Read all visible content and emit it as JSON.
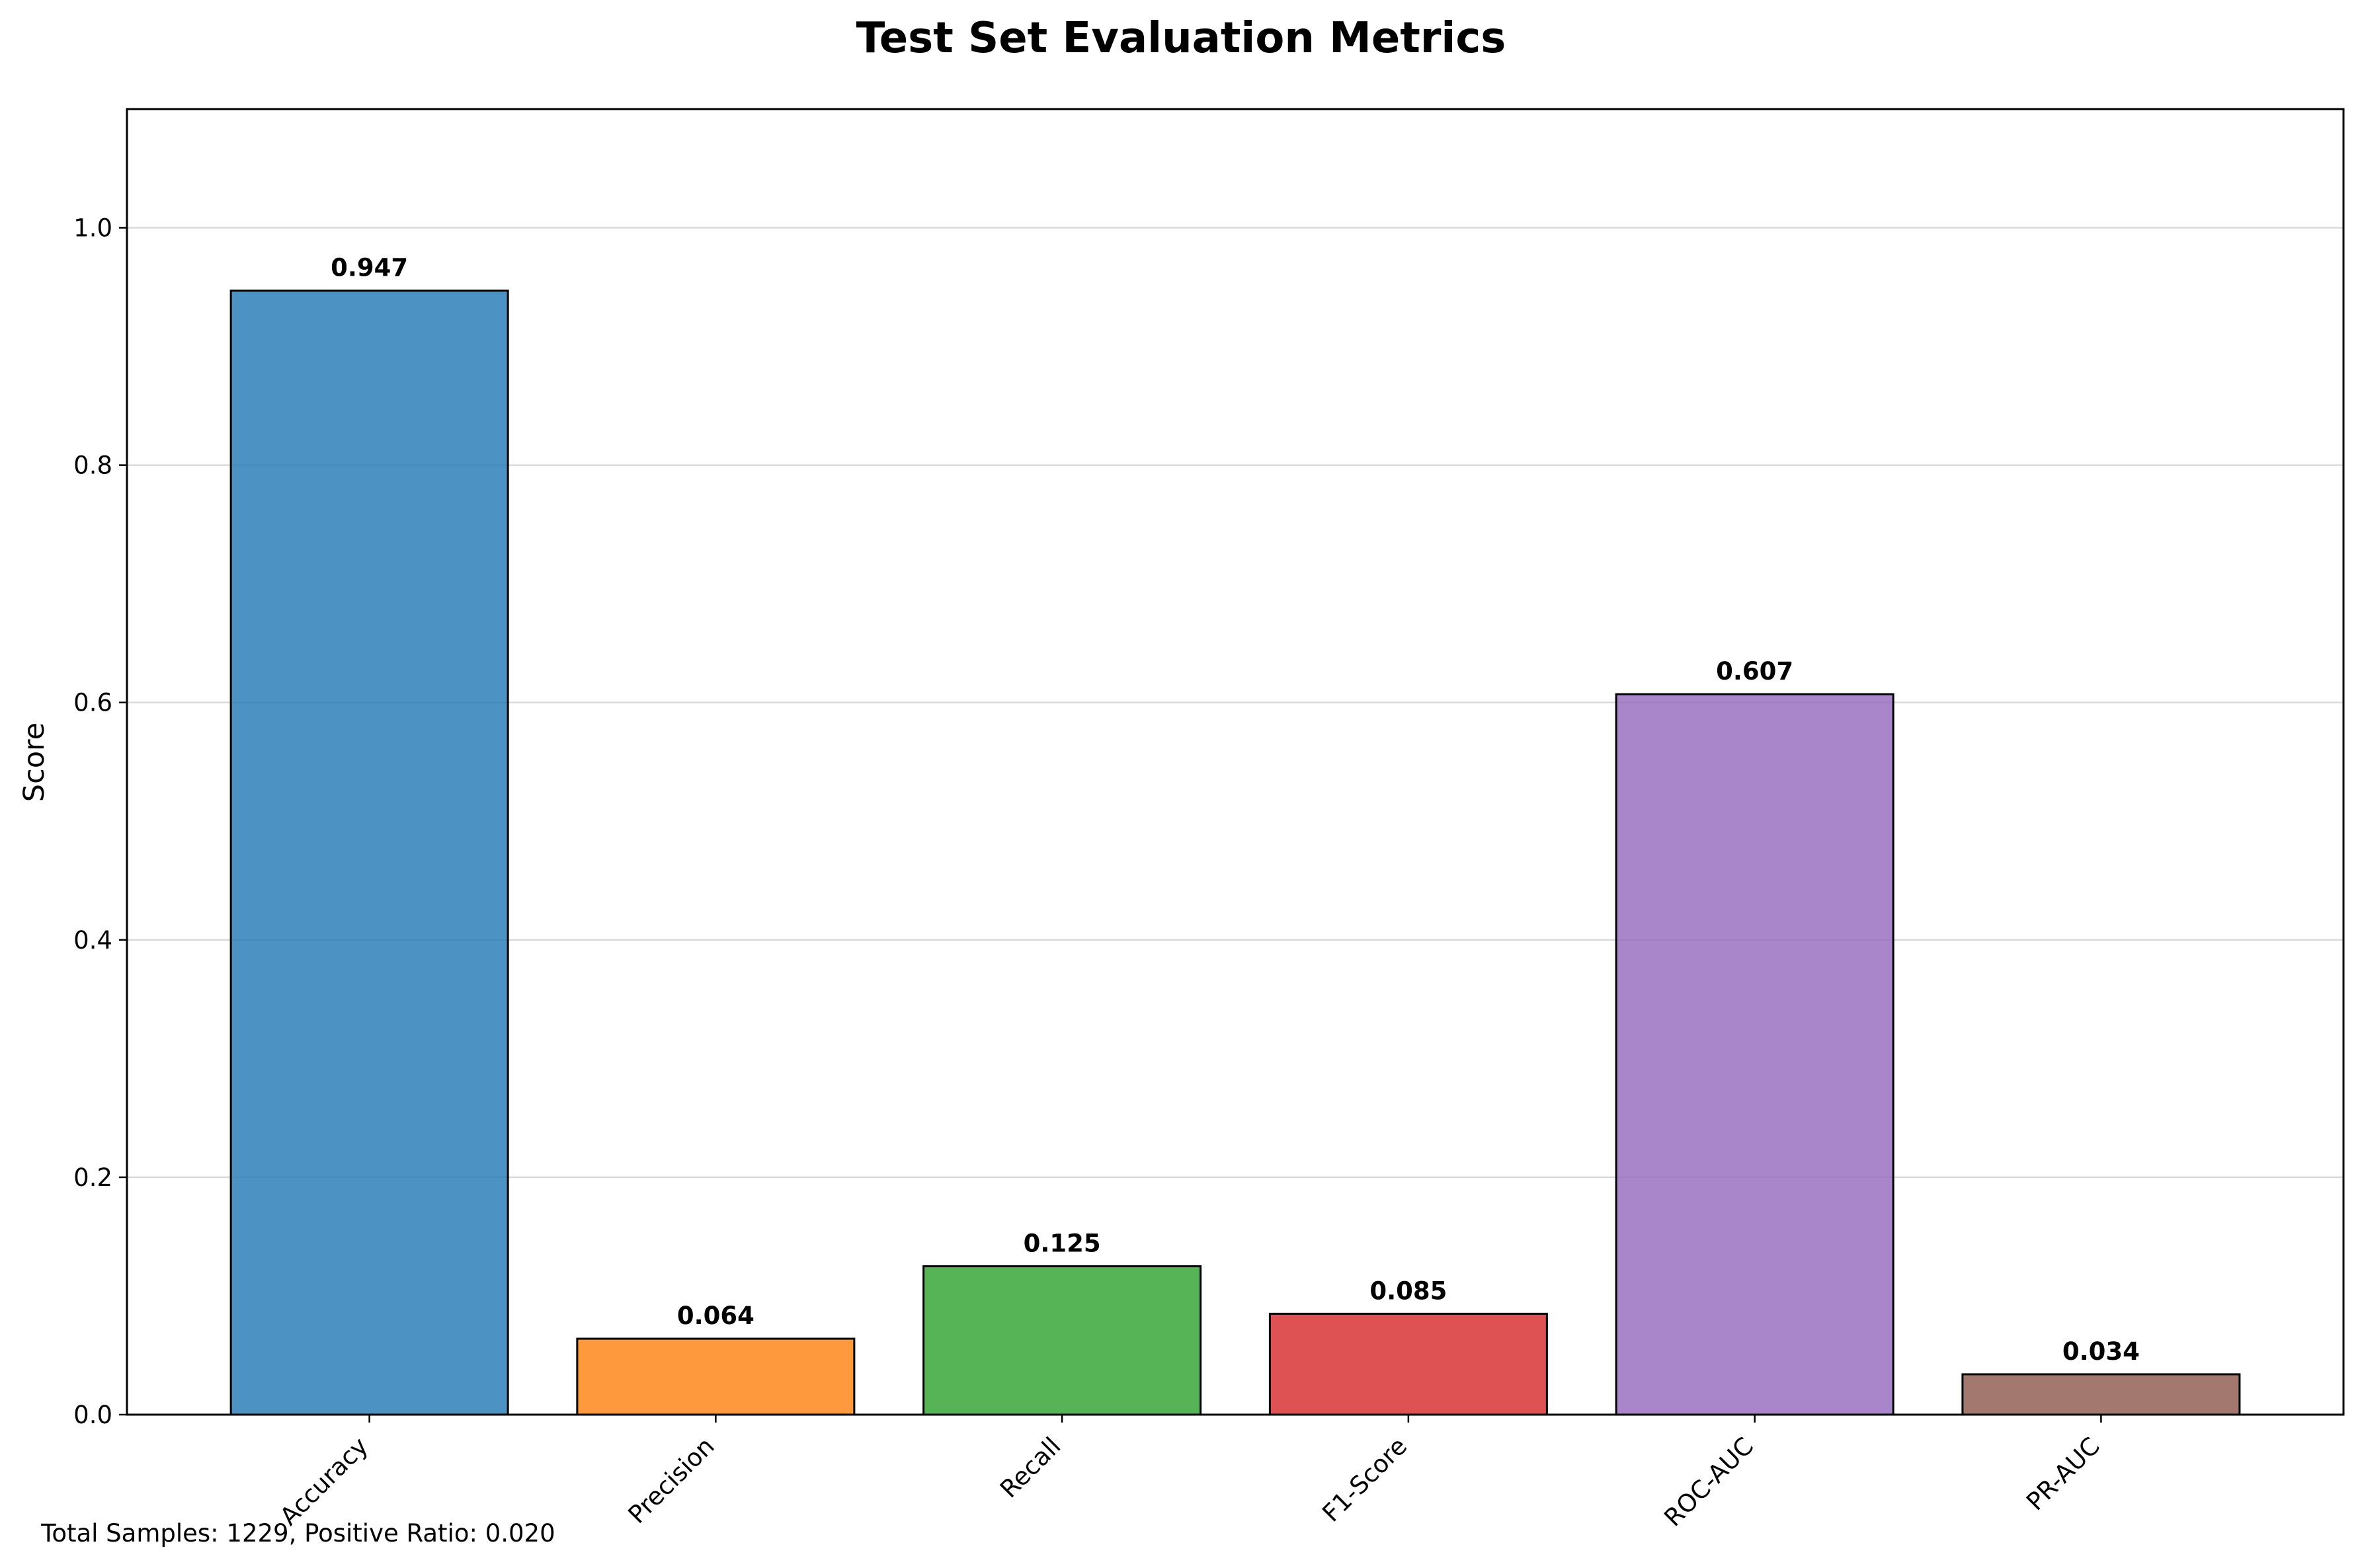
{
  "chart_data": {
    "type": "bar",
    "title": "Test Set Evaluation Metrics",
    "xlabel": "",
    "ylabel": "Score",
    "categories": [
      "Accuracy",
      "Precision",
      "Recall",
      "F1-Score",
      "ROC-AUC",
      "PR-AUC"
    ],
    "values": [
      0.947,
      0.064,
      0.125,
      0.085,
      0.607,
      0.034
    ],
    "value_labels": [
      "0.947",
      "0.064",
      "0.125",
      "0.085",
      "0.607",
      "0.034"
    ],
    "colors": [
      "#1f77b4",
      "#ff7f0e",
      "#2ca02c",
      "#d62728",
      "#9467bd",
      "#8c564b"
    ],
    "ylim": [
      0,
      1.1
    ],
    "yticks": [
      0.0,
      0.2,
      0.4,
      0.6,
      0.8,
      1.0
    ],
    "ytick_labels": [
      "0.0",
      "0.2",
      "0.4",
      "0.6",
      "0.8",
      "1.0"
    ],
    "grid": "y",
    "legend": "none"
  },
  "footer_text": "Total Samples: 1229, Positive Ratio: 0.020"
}
